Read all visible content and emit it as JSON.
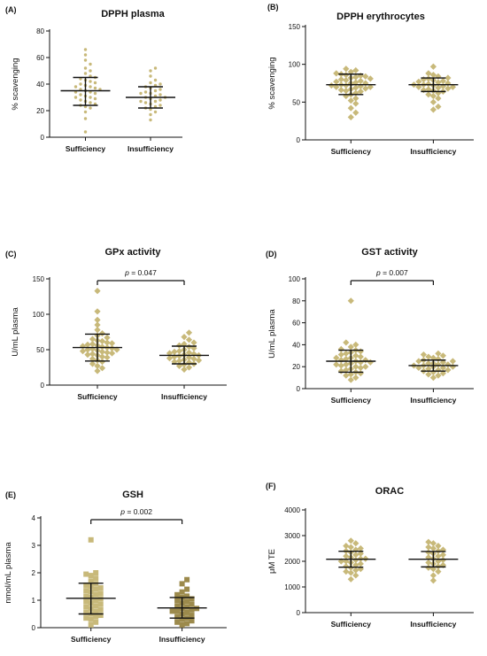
{
  "chart_data": [
    {
      "type": "scatter",
      "panel": "(A)",
      "title": "DPPH plasma",
      "ylabel": "% scavenging",
      "ylim": [
        0,
        80
      ],
      "yticks": [
        0,
        20,
        40,
        60,
        80
      ],
      "categories": [
        "Sufficiency",
        "Insufficiency"
      ],
      "marker": "dot",
      "groups": [
        {
          "mean": 35,
          "sd_low": 24,
          "sd_high": 45,
          "points": [
            4,
            14,
            19,
            22,
            23,
            24,
            25,
            26,
            27,
            28,
            29,
            30,
            30,
            31,
            32,
            33,
            34,
            34,
            35,
            36,
            36,
            37,
            38,
            38,
            39,
            40,
            41,
            42,
            43,
            44,
            45,
            46,
            48,
            50,
            52,
            55,
            58,
            62,
            66
          ]
        },
        {
          "mean": 30,
          "sd_low": 22,
          "sd_high": 38,
          "points": [
            13,
            17,
            19,
            21,
            22,
            23,
            24,
            25,
            26,
            27,
            27,
            28,
            29,
            30,
            30,
            31,
            32,
            33,
            33,
            34,
            35,
            36,
            37,
            38,
            39,
            40,
            41,
            43,
            46,
            50,
            52
          ]
        }
      ],
      "significance": ""
    },
    {
      "type": "scatter",
      "panel": "(B)",
      "title": "DPPH erythrocytes",
      "ylabel": "% scavenging",
      "ylim": [
        0,
        150
      ],
      "yticks": [
        0,
        50,
        100,
        150
      ],
      "categories": [
        "Sufficiency",
        "Insufficiency"
      ],
      "marker": "diamond",
      "groups": [
        {
          "mean": 73,
          "sd_low": 60,
          "sd_high": 87,
          "points": [
            30,
            36,
            42,
            48,
            52,
            55,
            58,
            60,
            62,
            64,
            65,
            66,
            67,
            68,
            69,
            70,
            70,
            71,
            72,
            72,
            73,
            74,
            75,
            75,
            76,
            77,
            78,
            79,
            80,
            81,
            82,
            83,
            84,
            85,
            86,
            87,
            88,
            90,
            92,
            94
          ]
        },
        {
          "mean": 73,
          "sd_low": 64,
          "sd_high": 82,
          "points": [
            40,
            44,
            50,
            55,
            58,
            60,
            62,
            64,
            65,
            66,
            67,
            68,
            69,
            70,
            70,
            71,
            72,
            73,
            73,
            74,
            75,
            76,
            77,
            78,
            79,
            80,
            81,
            82,
            84,
            86,
            88,
            97
          ]
        }
      ],
      "significance": ""
    },
    {
      "type": "scatter",
      "panel": "(C)",
      "title": "GPx activity",
      "ylabel": "U/mL plasma",
      "ylim": [
        0,
        150
      ],
      "yticks": [
        0,
        50,
        100,
        150
      ],
      "categories": [
        "Sufficiency",
        "Insufficiency"
      ],
      "marker": "diamond",
      "groups": [
        {
          "mean": 53,
          "sd_low": 34,
          "sd_high": 72,
          "points": [
            20,
            24,
            27,
            30,
            33,
            35,
            37,
            39,
            40,
            42,
            43,
            44,
            45,
            46,
            47,
            48,
            49,
            50,
            50,
            51,
            52,
            53,
            54,
            55,
            56,
            57,
            58,
            59,
            60,
            62,
            63,
            65,
            67,
            70,
            73,
            78,
            85,
            92,
            104,
            133
          ]
        },
        {
          "mean": 42,
          "sd_low": 30,
          "sd_high": 55,
          "points": [
            22,
            25,
            27,
            29,
            30,
            32,
            33,
            34,
            35,
            36,
            37,
            38,
            39,
            40,
            41,
            42,
            43,
            44,
            45,
            46,
            47,
            48,
            50,
            52,
            54,
            56,
            58,
            60,
            64,
            68,
            74
          ]
        }
      ],
      "significance": "p = 0.047"
    },
    {
      "type": "scatter",
      "panel": "(D)",
      "title": "GST activity",
      "ylabel": "U/mL plasma",
      "ylim": [
        0,
        100
      ],
      "yticks": [
        0,
        20,
        40,
        60,
        80,
        100
      ],
      "categories": [
        "Sufficiency",
        "Insufficiency"
      ],
      "marker": "diamond",
      "groups": [
        {
          "mean": 25,
          "sd_low": 15,
          "sd_high": 35,
          "points": [
            8,
            10,
            12,
            13,
            14,
            15,
            16,
            17,
            18,
            19,
            20,
            20,
            21,
            22,
            22,
            23,
            24,
            24,
            25,
            26,
            26,
            27,
            28,
            28,
            29,
            30,
            31,
            32,
            33,
            34,
            35,
            36,
            38,
            40,
            42,
            80
          ]
        },
        {
          "mean": 21,
          "sd_low": 16,
          "sd_high": 26,
          "points": [
            10,
            12,
            13,
            14,
            15,
            16,
            17,
            17,
            18,
            19,
            19,
            20,
            20,
            21,
            21,
            22,
            22,
            23,
            23,
            24,
            25,
            25,
            26,
            27,
            28,
            29,
            30,
            31,
            32
          ]
        }
      ],
      "significance": "p = 0.007"
    },
    {
      "type": "scatter",
      "panel": "(E)",
      "title": "GSH",
      "ylabel": "nmol/mL plasma",
      "ylim": [
        0,
        4
      ],
      "yticks": [
        0,
        1,
        2,
        3,
        4
      ],
      "categories": [
        "Sufficiency",
        "Insufficiency"
      ],
      "marker": "square",
      "groups": [
        {
          "mean": 1.07,
          "sd_low": 0.5,
          "sd_high": 1.62,
          "points": [
            0.1,
            0.2,
            0.3,
            0.35,
            0.4,
            0.45,
            0.5,
            0.55,
            0.6,
            0.65,
            0.7,
            0.75,
            0.8,
            0.85,
            0.9,
            0.95,
            1.0,
            1.05,
            1.1,
            1.15,
            1.2,
            1.25,
            1.3,
            1.35,
            1.4,
            1.45,
            1.5,
            1.55,
            1.6,
            1.7,
            1.8,
            1.9,
            1.95,
            2.0,
            3.2
          ]
        },
        {
          "mean": 0.72,
          "sd_low": 0.35,
          "sd_high": 1.1,
          "points": [
            0.1,
            0.15,
            0.2,
            0.25,
            0.3,
            0.35,
            0.4,
            0.45,
            0.5,
            0.55,
            0.6,
            0.6,
            0.65,
            0.7,
            0.7,
            0.75,
            0.8,
            0.85,
            0.9,
            0.95,
            1.0,
            1.05,
            1.1,
            1.15,
            1.2,
            1.3,
            1.4,
            1.6,
            1.75
          ]
        }
      ],
      "significance": "p = 0.002"
    },
    {
      "type": "scatter",
      "panel": "(F)",
      "title": "ORAC",
      "ylabel": "μM TE",
      "ylim": [
        0,
        4000
      ],
      "yticks": [
        0,
        1000,
        2000,
        3000,
        4000
      ],
      "categories": [
        "Sufficiency",
        "Insufficiency"
      ],
      "marker": "diamond",
      "groups": [
        {
          "mean": 2080,
          "sd_low": 1770,
          "sd_high": 2390,
          "points": [
            1300,
            1450,
            1550,
            1600,
            1650,
            1700,
            1750,
            1800,
            1850,
            1900,
            1950,
            2000,
            2000,
            2050,
            2100,
            2100,
            2150,
            2200,
            2250,
            2300,
            2350,
            2400,
            2450,
            2500,
            2550,
            2600,
            2700,
            2800
          ]
        },
        {
          "mean": 2080,
          "sd_low": 1780,
          "sd_high": 2380,
          "points": [
            1250,
            1450,
            1600,
            1700,
            1750,
            1800,
            1850,
            1900,
            1950,
            2000,
            2050,
            2100,
            2150,
            2200,
            2250,
            2300,
            2350,
            2400,
            2450,
            2500,
            2550,
            2600,
            2700,
            2750
          ]
        }
      ],
      "significance": ""
    }
  ]
}
